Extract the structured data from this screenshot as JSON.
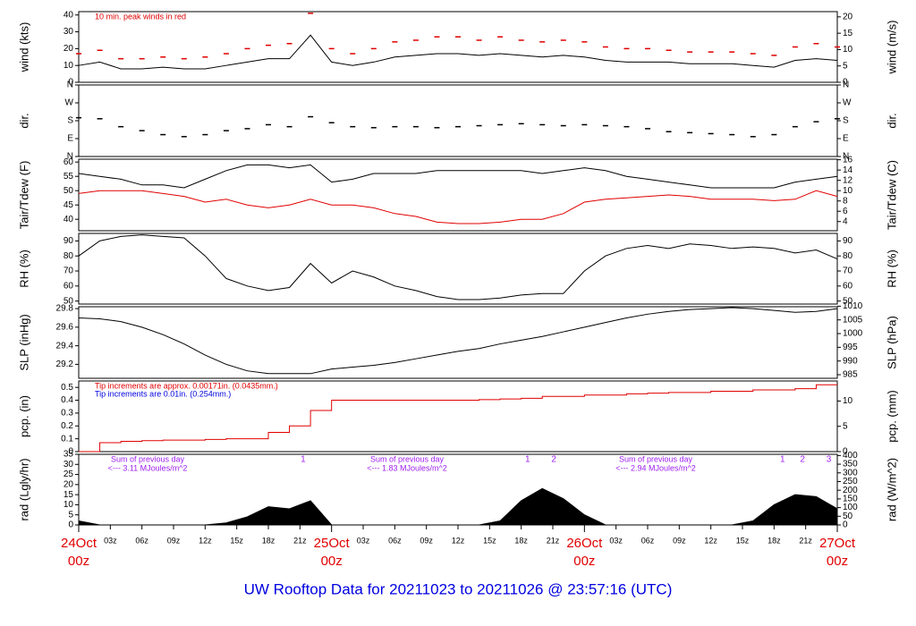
{
  "title": "UW Rooftop Data for 20211023  to  20211026 @ 23:57:16  (UTC)",
  "chart_data": [
    {
      "type": "line",
      "ylabel": "wind (kts)",
      "y2label": "wind (m/s)",
      "annotations": [
        {
          "text": "10 min. peak winds in red",
          "color": "#e00000"
        }
      ],
      "x": [
        0,
        2,
        4,
        6,
        8,
        10,
        12,
        14,
        16,
        18,
        20,
        22,
        24,
        26,
        28,
        30,
        32,
        34,
        36,
        38,
        40,
        42,
        44,
        46,
        48,
        50,
        52,
        54,
        56,
        58,
        60,
        62,
        64,
        66,
        68,
        70,
        72
      ],
      "series": [
        {
          "color": "#000000",
          "style": "line",
          "values": [
            10,
            12,
            8,
            8,
            9,
            8,
            8,
            10,
            12,
            14,
            14,
            28,
            12,
            10,
            12,
            15,
            16,
            17,
            17,
            16,
            17,
            16,
            15,
            16,
            15,
            13,
            12,
            12,
            12,
            11,
            11,
            11,
            10,
            9,
            13,
            14,
            13
          ]
        },
        {
          "color": "#e00000",
          "style": "dash",
          "values": [
            17,
            19,
            14,
            14,
            15,
            14,
            15,
            17,
            20,
            22,
            23,
            41,
            20,
            17,
            20,
            24,
            25,
            27,
            27,
            25,
            27,
            25,
            24,
            25,
            24,
            21,
            20,
            20,
            19,
            18,
            18,
            18,
            17,
            16,
            21,
            23,
            21
          ]
        }
      ],
      "ylim": [
        0,
        42
      ],
      "yticks": [
        0,
        10,
        20,
        30,
        40
      ],
      "y2lim": [
        0,
        21.6
      ],
      "y2ticks": [
        0,
        5,
        10,
        15,
        20
      ]
    },
    {
      "type": "line",
      "ylabel": "dir.",
      "y2label": "dir.",
      "x": [
        0,
        2,
        4,
        6,
        8,
        10,
        12,
        14,
        16,
        18,
        20,
        22,
        24,
        26,
        28,
        30,
        32,
        34,
        36,
        38,
        40,
        42,
        44,
        46,
        48,
        50,
        52,
        54,
        56,
        58,
        60,
        62,
        64,
        66,
        68,
        70,
        72
      ],
      "series": [
        {
          "color": "#000000",
          "style": "dash",
          "values": [
            195,
            190,
            150,
            130,
            110,
            100,
            110,
            130,
            140,
            160,
            150,
            200,
            170,
            150,
            145,
            150,
            150,
            145,
            150,
            155,
            160,
            165,
            160,
            155,
            160,
            155,
            150,
            140,
            125,
            120,
            115,
            110,
            100,
            110,
            150,
            175,
            190
          ]
        }
      ],
      "ylim": [
        0,
        360
      ],
      "yticks": [
        {
          "value": 0,
          "label": "N"
        },
        {
          "value": 90,
          "label": "E"
        },
        {
          "value": 180,
          "label": "S"
        },
        {
          "value": 270,
          "label": "W"
        },
        {
          "value": 360,
          "label": "N"
        }
      ],
      "y2lim": [
        0,
        360
      ],
      "y2ticks": [
        {
          "value": 0,
          "label": "N"
        },
        {
          "value": 90,
          "label": "E"
        },
        {
          "value": 180,
          "label": "S"
        },
        {
          "value": 270,
          "label": "W"
        },
        {
          "value": 360,
          "label": "N"
        }
      ]
    },
    {
      "type": "line",
      "ylabel": "Tair/Tdew (F)",
      "y2label": "Tair/Tdew (C)",
      "x": [
        0,
        2,
        4,
        6,
        8,
        10,
        12,
        14,
        16,
        18,
        20,
        22,
        24,
        26,
        28,
        30,
        32,
        34,
        36,
        38,
        40,
        42,
        44,
        46,
        48,
        50,
        52,
        54,
        56,
        58,
        60,
        62,
        64,
        66,
        68,
        70,
        72
      ],
      "series": [
        {
          "color": "#000000",
          "style": "line",
          "values": [
            56,
            55,
            54,
            52,
            52,
            51,
            54,
            57,
            59,
            59,
            58,
            59,
            53,
            54,
            56,
            56,
            56,
            57,
            57,
            57,
            57,
            57,
            56,
            57,
            58,
            57,
            55,
            54,
            53,
            52,
            51,
            51,
            51,
            51,
            53,
            54,
            55
          ]
        },
        {
          "color": "#e00000",
          "style": "line",
          "values": [
            49,
            50,
            50,
            50,
            49,
            48,
            46,
            47,
            45,
            44,
            45,
            47,
            45,
            45,
            44,
            42,
            41,
            39,
            38.5,
            38.5,
            39,
            40,
            40,
            42,
            46,
            47,
            47.5,
            48,
            48.5,
            48,
            47,
            47,
            47,
            46.5,
            47,
            50,
            48
          ]
        }
      ],
      "ylim": [
        36,
        61
      ],
      "yticks": [
        40,
        45,
        50,
        55,
        60
      ],
      "y2lim": [
        2.22,
        16.11
      ],
      "y2ticks": [
        4,
        6,
        8,
        10,
        12,
        14,
        16
      ]
    },
    {
      "type": "line",
      "ylabel": "RH (%)",
      "y2label": "RH (%)",
      "x": [
        0,
        2,
        4,
        6,
        8,
        10,
        12,
        14,
        16,
        18,
        20,
        22,
        24,
        26,
        28,
        30,
        32,
        34,
        36,
        38,
        40,
        42,
        44,
        46,
        48,
        50,
        52,
        54,
        56,
        58,
        60,
        62,
        64,
        66,
        68,
        70,
        72
      ],
      "series": [
        {
          "color": "#000000",
          "style": "line",
          "values": [
            80,
            90,
            93,
            94,
            93,
            92,
            80,
            65,
            60,
            57,
            59,
            75,
            62,
            70,
            66,
            60,
            57,
            53,
            51,
            51,
            52,
            54,
            55,
            55,
            70,
            80,
            85,
            87,
            85,
            88,
            87,
            85,
            86,
            85,
            82,
            84,
            78
          ]
        }
      ],
      "ylim": [
        48,
        95
      ],
      "yticks": [
        50,
        60,
        70,
        80,
        90
      ],
      "y2lim": [
        48,
        95
      ],
      "y2ticks": [
        50,
        60,
        70,
        80,
        90
      ]
    },
    {
      "type": "line",
      "ylabel": "SLP (inHg)",
      "y2label": "SLP (hPa)",
      "x": [
        0,
        2,
        4,
        6,
        8,
        10,
        12,
        14,
        16,
        18,
        20,
        22,
        24,
        26,
        28,
        30,
        32,
        34,
        36,
        38,
        40,
        42,
        44,
        46,
        48,
        50,
        52,
        54,
        56,
        58,
        60,
        62,
        64,
        66,
        68,
        70,
        72
      ],
      "series": [
        {
          "color": "#000000",
          "style": "line",
          "values": [
            29.7,
            29.69,
            29.66,
            29.6,
            29.52,
            29.42,
            29.3,
            29.2,
            29.13,
            29.1,
            29.1,
            29.1,
            29.15,
            29.17,
            29.19,
            29.22,
            29.26,
            29.3,
            29.34,
            29.37,
            29.42,
            29.46,
            29.5,
            29.55,
            29.6,
            29.65,
            29.7,
            29.74,
            29.77,
            29.79,
            29.8,
            29.81,
            29.8,
            29.78,
            29.76,
            29.77,
            29.8
          ]
        }
      ],
      "ylim": [
        29.05,
        29.82
      ],
      "yticks": [
        29.2,
        29.4,
        29.6,
        29.8
      ],
      "y2lim": [
        983.7,
        1009.8
      ],
      "y2ticks": [
        985,
        990,
        995,
        1000,
        1005,
        1010
      ]
    },
    {
      "type": "line",
      "ylabel": "pcp. (in)",
      "y2label": "pcp. (mm)",
      "annotations": [
        {
          "text": "Tip increments are approx. 0.00171in. (0.0435mm.)",
          "color": "#e00000"
        },
        {
          "text": "Tip increments are 0.01in. (0.254mm.)",
          "color": "#0000e0"
        }
      ],
      "x": [
        0,
        2,
        4,
        6,
        8,
        10,
        12,
        14,
        16,
        18,
        20,
        22,
        24,
        26,
        28,
        30,
        32,
        34,
        36,
        38,
        40,
        42,
        44,
        46,
        48,
        50,
        52,
        54,
        56,
        58,
        60,
        62,
        64,
        66,
        68,
        70,
        72
      ],
      "series": [
        {
          "color": "#e00000",
          "style": "step",
          "values": [
            0,
            0.07,
            0.08,
            0.085,
            0.09,
            0.09,
            0.095,
            0.1,
            0.1,
            0.15,
            0.2,
            0.32,
            0.4,
            0.4,
            0.4,
            0.4,
            0.4,
            0.4,
            0.4,
            0.405,
            0.41,
            0.415,
            0.43,
            0.43,
            0.44,
            0.44,
            0.45,
            0.455,
            0.46,
            0.46,
            0.47,
            0.47,
            0.48,
            0.48,
            0.49,
            0.52,
            0.52
          ]
        }
      ],
      "ylim": [
        0,
        0.55
      ],
      "yticks": [
        0,
        0.1,
        0.2,
        0.3,
        0.4,
        0.5
      ],
      "y2lim": [
        0,
        13.97
      ],
      "y2ticks": [
        0,
        5,
        10
      ]
    },
    {
      "type": "area",
      "ylabel": "rad (Lgly/hr)",
      "y2label": "rad (W/m^2)",
      "annotations": [
        {
          "text": "Sum of previous day",
          "color": "#a020f0"
        },
        {
          "text": "<--- 3.11 MJoules/m^2",
          "color": "#a020f0"
        },
        {
          "text": "Sum of previous day",
          "color": "#a020f0"
        },
        {
          "text": "<--- 1.83 MJoules/m^2",
          "color": "#a020f0"
        },
        {
          "text": "Sum of previous day",
          "color": "#a020f0"
        },
        {
          "text": "<--- 2.94 MJoules/m^2",
          "color": "#a020f0"
        }
      ],
      "markers": [
        {
          "x": 21.3,
          "label": "1"
        },
        {
          "x": 42.6,
          "label": "1"
        },
        {
          "x": 45.1,
          "label": "2"
        },
        {
          "x": 66.8,
          "label": "1"
        },
        {
          "x": 68.7,
          "label": "2"
        },
        {
          "x": 71.2,
          "label": "3"
        }
      ],
      "x": [
        0,
        2,
        4,
        6,
        8,
        10,
        12,
        14,
        16,
        18,
        20,
        22,
        24,
        26,
        28,
        30,
        32,
        34,
        36,
        38,
        40,
        42,
        44,
        46,
        48,
        50,
        52,
        54,
        56,
        58,
        60,
        62,
        64,
        66,
        68,
        70,
        72
      ],
      "series": [
        {
          "color": "#000000",
          "style": "area",
          "values": [
            2,
            0,
            0,
            0,
            0,
            0,
            0,
            1,
            4,
            9,
            8,
            12,
            0,
            0,
            0,
            0,
            0,
            0,
            0,
            0,
            2,
            12,
            18,
            13,
            5,
            0,
            0,
            0,
            0,
            0,
            0,
            0,
            2,
            10,
            15,
            14,
            8
          ]
        }
      ],
      "ylim": [
        0,
        35
      ],
      "yticks": [
        0,
        5,
        10,
        15,
        20,
        25,
        30,
        35
      ],
      "y2lim": [
        0,
        407
      ],
      "y2ticks": [
        0,
        50,
        100,
        150,
        200,
        250,
        300,
        350,
        400
      ],
      "xlim": [
        0,
        72
      ],
      "xticks": [
        {
          "value": 3,
          "label": "03z"
        },
        {
          "value": 6,
          "label": "06z"
        },
        {
          "value": 9,
          "label": "09z"
        },
        {
          "value": 12,
          "label": "12z"
        },
        {
          "value": 15,
          "label": "15z"
        },
        {
          "value": 18,
          "label": "18z"
        },
        {
          "value": 21,
          "label": "21z"
        },
        {
          "value": 27,
          "label": "03z"
        },
        {
          "value": 30,
          "label": "06z"
        },
        {
          "value": 33,
          "label": "09z"
        },
        {
          "value": 36,
          "label": "12z"
        },
        {
          "value": 39,
          "label": "15z"
        },
        {
          "value": 42,
          "label": "18z"
        },
        {
          "value": 45,
          "label": "21z"
        },
        {
          "value": 51,
          "label": "03z"
        },
        {
          "value": 54,
          "label": "06z"
        },
        {
          "value": 57,
          "label": "09z"
        },
        {
          "value": 60,
          "label": "12z"
        },
        {
          "value": 63,
          "label": "15z"
        },
        {
          "value": 66,
          "label": "18z"
        },
        {
          "value": 69,
          "label": "21z"
        }
      ],
      "date_ticks": [
        {
          "value": 0,
          "label": "24Oct",
          "sublabel": "00z"
        },
        {
          "value": 24,
          "label": "25Oct",
          "sublabel": "00z"
        },
        {
          "value": 48,
          "label": "26Oct",
          "sublabel": "00z"
        },
        {
          "value": 72,
          "label": "27Oct",
          "sublabel": "00z"
        }
      ]
    }
  ]
}
